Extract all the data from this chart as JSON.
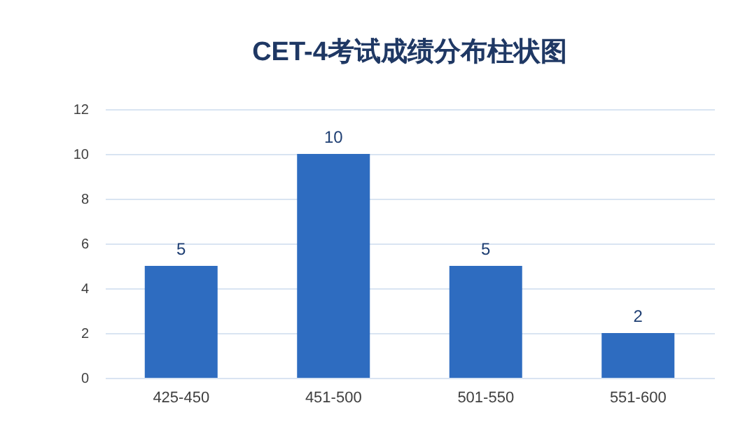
{
  "chart_data": {
    "type": "bar",
    "title": "CET-4考试成绩分布柱状图",
    "categories": [
      "425-450",
      "451-500",
      "501-550",
      "551-600"
    ],
    "values": [
      5,
      10,
      5,
      2
    ],
    "color": "#2e6cc0",
    "ylim": [
      0,
      12
    ],
    "yticks": [
      0,
      2,
      4,
      6,
      8,
      10,
      12
    ],
    "grid": "y",
    "data_labels": true
  }
}
